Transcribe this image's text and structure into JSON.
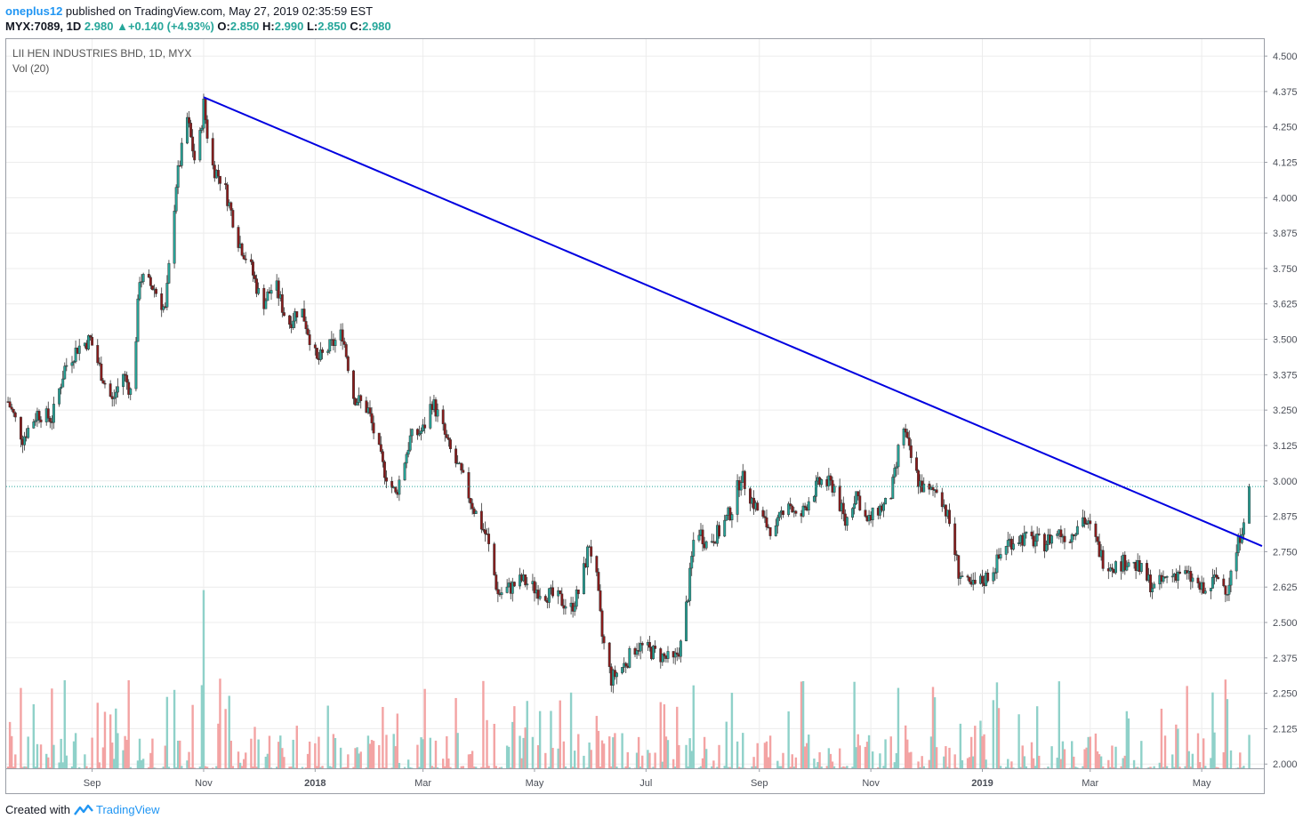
{
  "header": {
    "user": "oneplus12",
    "published": "published on TradingView.com, May 27, 2019 02:35:59 EST",
    "symbol": "MYX:7089, 1D",
    "last": "2.980",
    "change": "+0.140 (+4.93%)",
    "o_label": "O:",
    "o_val": "2.850",
    "h_label": "H:",
    "h_val": "2.990",
    "l_label": "L:",
    "l_val": "2.850",
    "c_label": "C:",
    "c_val": "2.980"
  },
  "legend": {
    "title": "LII HEN INDUSTRIES BHD, 1D, MYX",
    "vol": "Vol (20)"
  },
  "footer": {
    "created": "Created with",
    "brand": "TradingView"
  },
  "colors": {
    "up": "#26a69a",
    "down": "#8b1a1a",
    "trend": "#0000e0",
    "grid": "#ececec",
    "vol_up": "#8fd1c9",
    "vol_down": "#f3a3a3"
  },
  "chart_data": {
    "type": "candlestick",
    "title": "LII HEN INDUSTRIES BHD, 1D, MYX",
    "y_ticks": [
      "4.500",
      "4.375",
      "4.250",
      "4.125",
      "4.000",
      "3.875",
      "3.750",
      "3.625",
      "3.500",
      "3.375",
      "3.250",
      "3.125",
      "3.000",
      "2.875",
      "2.750",
      "2.625",
      "2.500",
      "2.375",
      "2.250",
      "2.125",
      "2.000"
    ],
    "x_ticks": [
      "Sep",
      "Nov",
      "2018",
      "Mar",
      "May",
      "Jul",
      "Sep",
      "Nov",
      "2019",
      "Mar",
      "May"
    ],
    "ylim": [
      1.985,
      4.56
    ],
    "last_price": 2.98,
    "close_path": [
      {
        "d": "2017-07-17",
        "c": 3.28
      },
      {
        "d": "2017-07-25",
        "c": 3.15
      },
      {
        "d": "2017-08-02",
        "c": 3.24
      },
      {
        "d": "2017-08-10",
        "c": 3.22
      },
      {
        "d": "2017-08-17",
        "c": 3.4
      },
      {
        "d": "2017-08-24",
        "c": 3.47
      },
      {
        "d": "2017-08-31",
        "c": 3.5
      },
      {
        "d": "2017-09-06",
        "c": 3.38
      },
      {
        "d": "2017-09-12",
        "c": 3.28
      },
      {
        "d": "2017-09-18",
        "c": 3.38
      },
      {
        "d": "2017-09-23",
        "c": 3.3
      },
      {
        "d": "2017-09-27",
        "c": 3.72
      },
      {
        "d": "2017-10-05",
        "c": 3.68
      },
      {
        "d": "2017-10-11",
        "c": 3.6
      },
      {
        "d": "2017-10-17",
        "c": 4.05
      },
      {
        "d": "2017-10-23",
        "c": 4.28
      },
      {
        "d": "2017-10-28",
        "c": 4.1
      },
      {
        "d": "2017-11-01",
        "c": 4.33
      },
      {
        "d": "2017-11-05",
        "c": 4.12
      },
      {
        "d": "2017-11-12",
        "c": 4.05
      },
      {
        "d": "2017-11-20",
        "c": 3.85
      },
      {
        "d": "2017-11-27",
        "c": 3.75
      },
      {
        "d": "2017-12-03",
        "c": 3.62
      },
      {
        "d": "2017-12-10",
        "c": 3.7
      },
      {
        "d": "2017-12-17",
        "c": 3.55
      },
      {
        "d": "2017-12-24",
        "c": 3.62
      },
      {
        "d": "2018-01-02",
        "c": 3.42
      },
      {
        "d": "2018-01-10",
        "c": 3.48
      },
      {
        "d": "2018-01-16",
        "c": 3.52
      },
      {
        "d": "2018-01-22",
        "c": 3.3
      },
      {
        "d": "2018-01-30",
        "c": 3.25
      },
      {
        "d": "2018-02-07",
        "c": 3.05
      },
      {
        "d": "2018-02-14",
        "c": 2.95
      },
      {
        "d": "2018-02-22",
        "c": 3.15
      },
      {
        "d": "2018-03-01",
        "c": 3.18
      },
      {
        "d": "2018-03-06",
        "c": 3.28
      },
      {
        "d": "2018-03-10",
        "c": 3.22
      },
      {
        "d": "2018-03-15",
        "c": 3.12
      },
      {
        "d": "2018-03-22",
        "c": 3.02
      },
      {
        "d": "2018-03-29",
        "c": 2.9
      },
      {
        "d": "2018-04-05",
        "c": 2.8
      },
      {
        "d": "2018-04-11",
        "c": 2.6
      },
      {
        "d": "2018-04-17",
        "c": 2.62
      },
      {
        "d": "2018-04-24",
        "c": 2.65
      },
      {
        "d": "2018-05-01",
        "c": 2.62
      },
      {
        "d": "2018-05-08",
        "c": 2.6
      },
      {
        "d": "2018-05-15",
        "c": 2.58
      },
      {
        "d": "2018-05-21",
        "c": 2.55
      },
      {
        "d": "2018-05-26",
        "c": 2.62
      },
      {
        "d": "2018-05-31",
        "c": 2.78
      },
      {
        "d": "2018-06-04",
        "c": 2.65
      },
      {
        "d": "2018-06-07",
        "c": 2.45
      },
      {
        "d": "2018-06-12",
        "c": 2.3
      },
      {
        "d": "2018-06-19",
        "c": 2.35
      },
      {
        "d": "2018-06-26",
        "c": 2.42
      },
      {
        "d": "2018-07-03",
        "c": 2.4
      },
      {
        "d": "2018-07-10",
        "c": 2.38
      },
      {
        "d": "2018-07-16",
        "c": 2.36
      },
      {
        "d": "2018-07-20",
        "c": 2.42
      },
      {
        "d": "2018-07-24",
        "c": 2.6
      },
      {
        "d": "2018-07-28",
        "c": 2.85
      },
      {
        "d": "2018-08-03",
        "c": 2.78
      },
      {
        "d": "2018-08-10",
        "c": 2.82
      },
      {
        "d": "2018-08-17",
        "c": 2.9
      },
      {
        "d": "2018-08-22",
        "c": 3.02
      },
      {
        "d": "2018-08-29",
        "c": 2.92
      },
      {
        "d": "2018-09-04",
        "c": 2.85
      },
      {
        "d": "2018-09-10",
        "c": 2.82
      },
      {
        "d": "2018-09-16",
        "c": 2.95
      },
      {
        "d": "2018-09-22",
        "c": 2.85
      },
      {
        "d": "2018-09-29",
        "c": 2.95
      },
      {
        "d": "2018-10-05",
        "c": 3.0
      },
      {
        "d": "2018-10-12",
        "c": 2.98
      },
      {
        "d": "2018-10-18",
        "c": 2.85
      },
      {
        "d": "2018-10-24",
        "c": 2.96
      },
      {
        "d": "2018-10-30",
        "c": 2.85
      },
      {
        "d": "2018-11-05",
        "c": 2.9
      },
      {
        "d": "2018-11-11",
        "c": 2.92
      },
      {
        "d": "2018-11-15",
        "c": 3.05
      },
      {
        "d": "2018-11-18",
        "c": 3.22
      },
      {
        "d": "2018-11-22",
        "c": 3.1
      },
      {
        "d": "2018-11-27",
        "c": 3.0
      },
      {
        "d": "2018-12-02",
        "c": 2.95
      },
      {
        "d": "2018-12-08",
        "c": 2.98
      },
      {
        "d": "2018-12-14",
        "c": 2.85
      },
      {
        "d": "2018-12-19",
        "c": 2.68
      },
      {
        "d": "2018-12-25",
        "c": 2.62
      },
      {
        "d": "2019-01-02",
        "c": 2.65
      },
      {
        "d": "2019-01-08",
        "c": 2.7
      },
      {
        "d": "2019-01-14",
        "c": 2.78
      },
      {
        "d": "2019-01-21",
        "c": 2.8
      },
      {
        "d": "2019-01-28",
        "c": 2.79
      },
      {
        "d": "2019-02-04",
        "c": 2.78
      },
      {
        "d": "2019-02-11",
        "c": 2.82
      },
      {
        "d": "2019-02-18",
        "c": 2.8
      },
      {
        "d": "2019-02-24",
        "c": 2.88
      },
      {
        "d": "2019-03-02",
        "c": 2.82
      },
      {
        "d": "2019-03-08",
        "c": 2.72
      },
      {
        "d": "2019-03-15",
        "c": 2.7
      },
      {
        "d": "2019-03-22",
        "c": 2.72
      },
      {
        "d": "2019-03-29",
        "c": 2.68
      },
      {
        "d": "2019-04-05",
        "c": 2.62
      },
      {
        "d": "2019-04-12",
        "c": 2.66
      },
      {
        "d": "2019-04-19",
        "c": 2.68
      },
      {
        "d": "2019-04-26",
        "c": 2.65
      },
      {
        "d": "2019-05-03",
        "c": 2.6
      },
      {
        "d": "2019-05-09",
        "c": 2.66
      },
      {
        "d": "2019-05-15",
        "c": 2.62
      },
      {
        "d": "2019-05-20",
        "c": 2.75
      },
      {
        "d": "2019-05-23",
        "c": 2.84
      },
      {
        "d": "2019-05-27",
        "c": 2.98
      }
    ],
    "trendline": {
      "from": {
        "d": "2017-11-01",
        "p": 4.355
      },
      "to": {
        "d": "2019-06-03",
        "p": 2.77
      }
    }
  }
}
